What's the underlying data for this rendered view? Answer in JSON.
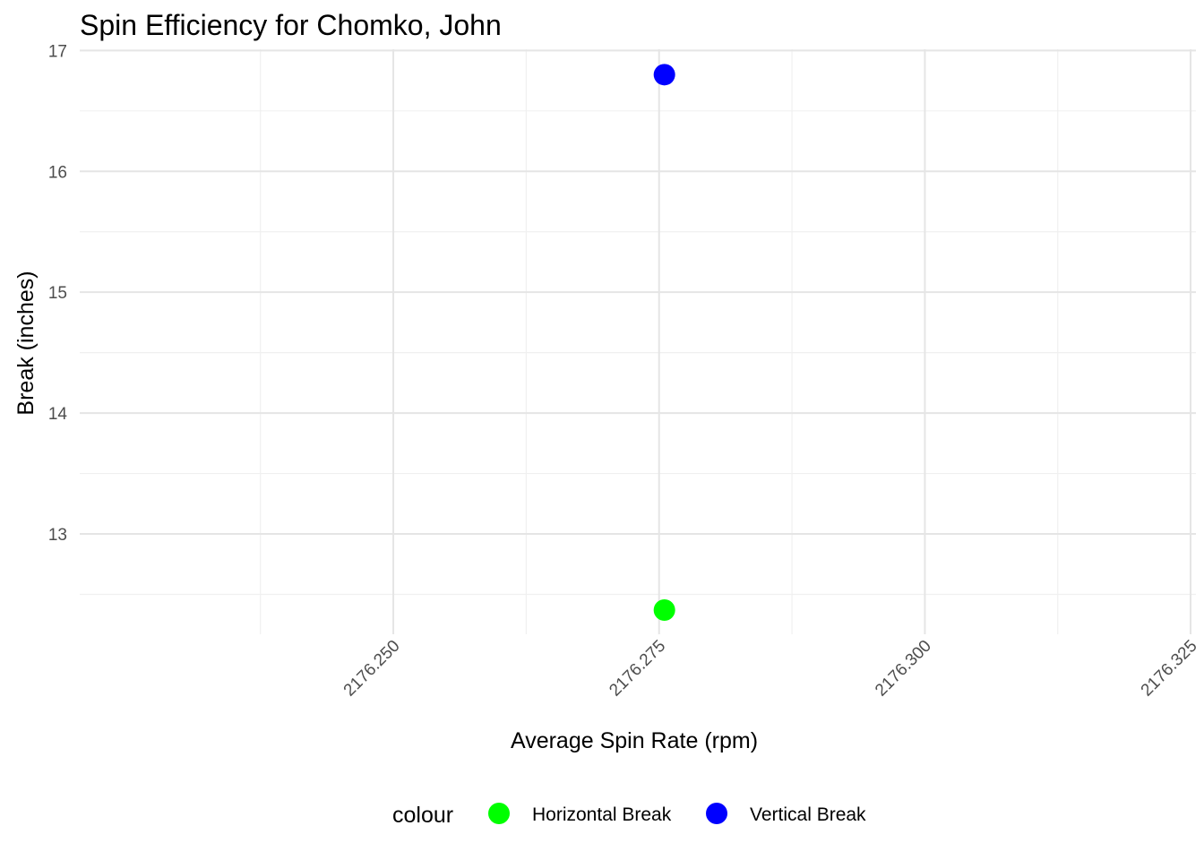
{
  "chart_data": {
    "type": "scatter",
    "title": "Spin Efficiency for Chomko, John",
    "xlabel": "Average Spin Rate (rpm)",
    "ylabel": "Break (inches)",
    "xlim": [
      2176.2205,
      2176.3255
    ],
    "ylim": [
      12.17,
      17.01
    ],
    "x_ticks": [
      2176.25,
      2176.275,
      2176.3,
      2176.325
    ],
    "x_tick_labels": [
      "2176.250",
      "2176.275",
      "2176.300",
      "2176.325"
    ],
    "y_ticks": [
      13,
      14,
      15,
      16,
      17
    ],
    "y_tick_labels": [
      "13",
      "14",
      "15",
      "16",
      "17"
    ],
    "grid": true,
    "legend": {
      "title": "colour",
      "position": "bottom"
    },
    "series": [
      {
        "name": "Horizontal Break",
        "color": "#00ff00",
        "points": [
          {
            "x": 2176.2755,
            "y": 12.37
          }
        ]
      },
      {
        "name": "Vertical Break",
        "color": "#0000ff",
        "points": [
          {
            "x": 2176.2755,
            "y": 16.8
          }
        ]
      }
    ]
  }
}
